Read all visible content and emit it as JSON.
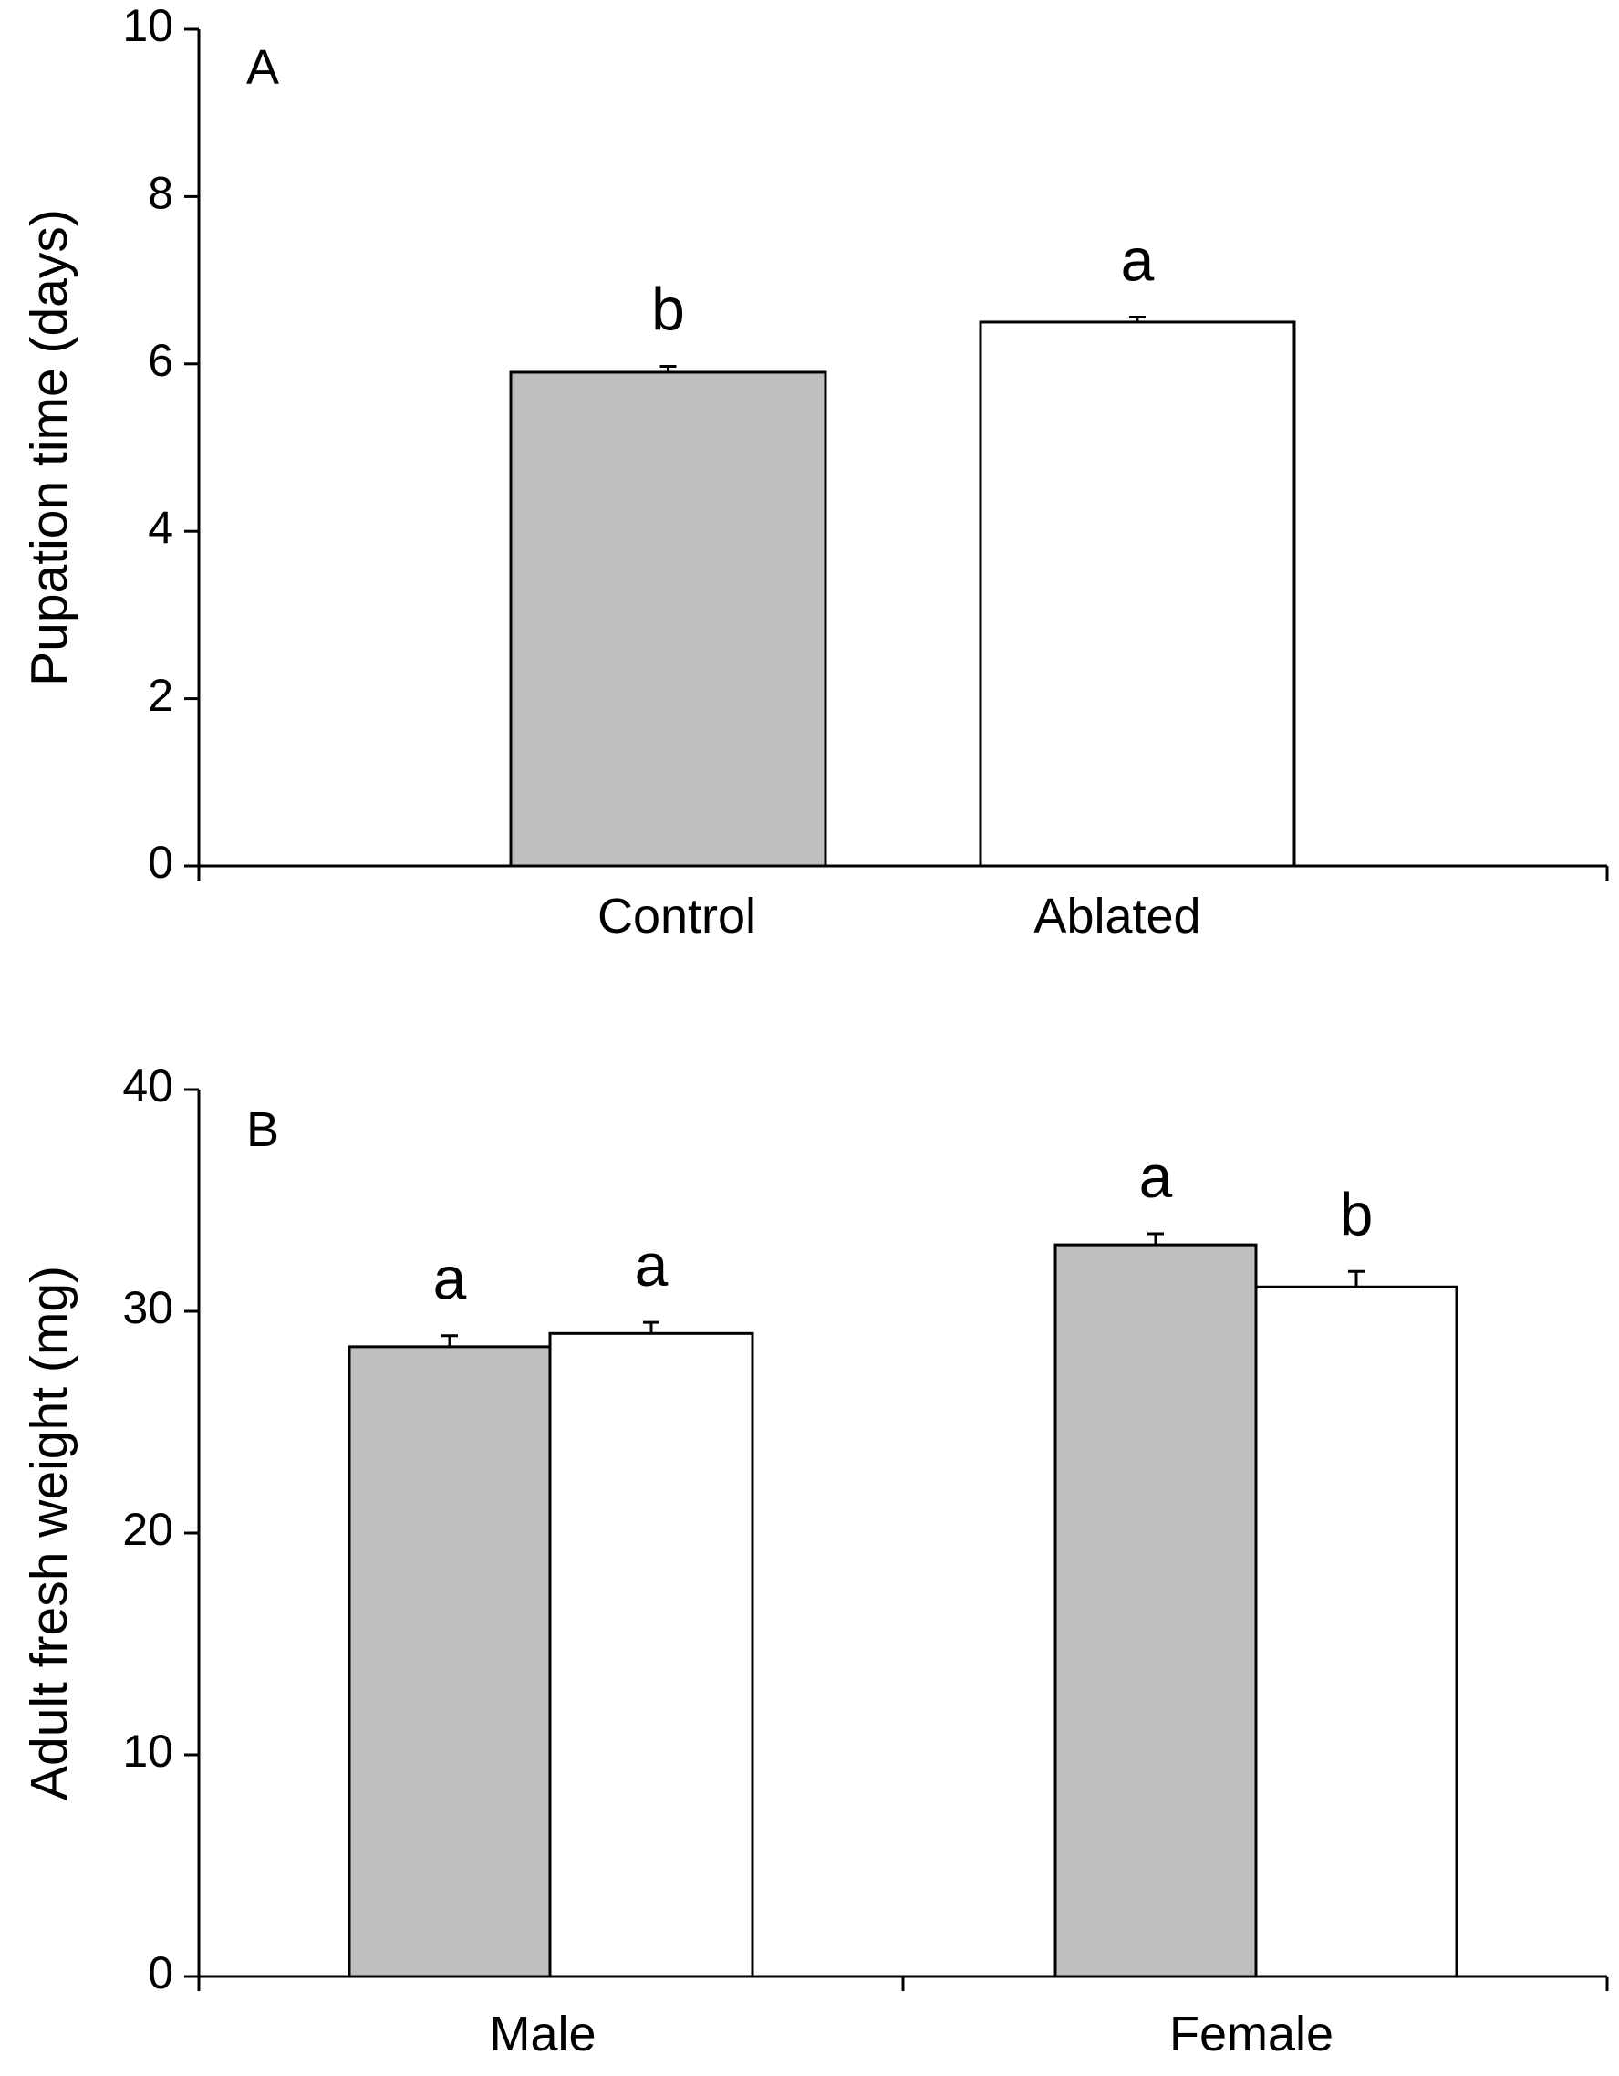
{
  "chart_data": [
    {
      "panel": "A",
      "type": "bar",
      "ylabel": "Pupation time (days)",
      "ylim": [
        0,
        10
      ],
      "yticks": [
        0,
        2,
        4,
        6,
        8,
        10
      ],
      "categories": [
        "Control",
        "Ablated"
      ],
      "series": [
        {
          "values": [
            5.9,
            6.5
          ],
          "errors": [
            0.07,
            0.06
          ],
          "colors": [
            "#bfbfbf",
            "#ffffff"
          ],
          "significance": [
            "b",
            "a"
          ]
        }
      ]
    },
    {
      "panel": "B",
      "type": "bar",
      "ylabel": "Adult fresh weight (mg)",
      "ylim": [
        0,
        40
      ],
      "yticks": [
        0,
        10,
        20,
        30,
        40
      ],
      "categories": [
        "Male",
        "Female"
      ],
      "series": [
        {
          "color": "#bfbfbf",
          "values": [
            28.4,
            33.0
          ],
          "errors": [
            0.5,
            0.5
          ],
          "significance": [
            "a",
            "a"
          ]
        },
        {
          "color": "#ffffff",
          "values": [
            29.0,
            31.1
          ],
          "errors": [
            0.5,
            0.7
          ],
          "significance": [
            "a",
            "b"
          ]
        }
      ]
    }
  ]
}
